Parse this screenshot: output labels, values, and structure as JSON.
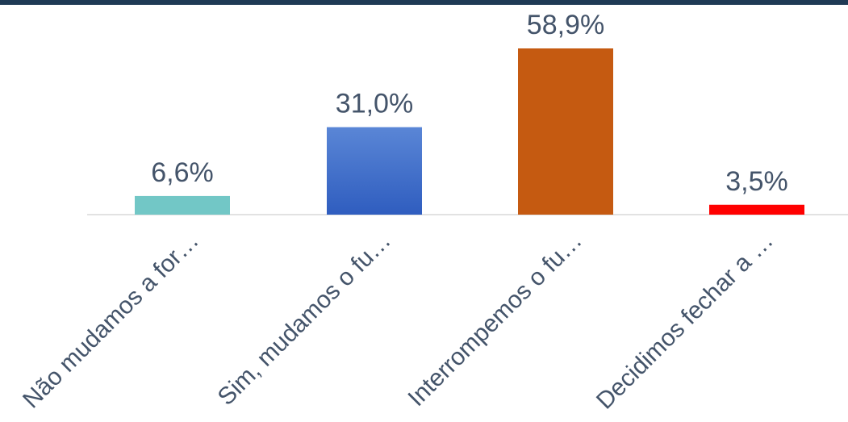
{
  "chart_data": {
    "type": "bar",
    "title": "",
    "xlabel": "",
    "ylabel": "",
    "ylim": [
      0,
      60
    ],
    "grid": false,
    "legend": "none",
    "categories": [
      "Não mudamos a for…",
      "Sim, mudamos o fu…",
      "Interrompemos o fu…",
      "Decidimos fechar a …"
    ],
    "values": [
      6.6,
      31.0,
      58.9,
      3.5
    ],
    "value_labels": [
      "6,6%",
      "31,0%",
      "58,9%",
      "3,5%"
    ],
    "colors": [
      "#72c7c6",
      "#3b67c8",
      "#c55a11",
      "#ff0000"
    ]
  }
}
